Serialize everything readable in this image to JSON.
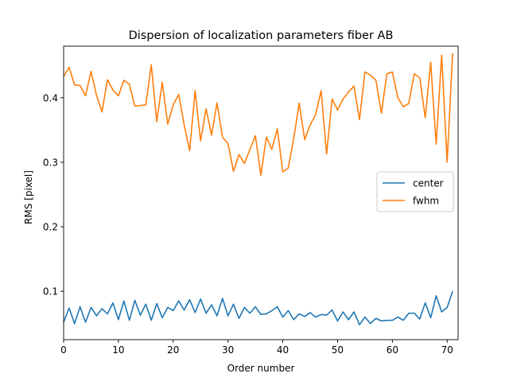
{
  "chart_data": {
    "type": "line",
    "title": "Dispersion of localization parameters fiber AB",
    "xlabel": "Order number",
    "ylabel": "RMS [pixel]",
    "xlim": [
      0,
      72
    ],
    "ylim": [
      0.025,
      0.48
    ],
    "x_ticks": [
      0,
      10,
      20,
      30,
      40,
      50,
      60,
      70
    ],
    "y_ticks": [
      0.1,
      0.2,
      0.3,
      0.4
    ],
    "y_tick_labels": [
      "0.1",
      "0.2",
      "0.3",
      "0.4"
    ],
    "grid": false,
    "legend_position": "center-right",
    "x": [
      0,
      1,
      2,
      3,
      4,
      5,
      6,
      7,
      8,
      9,
      10,
      11,
      12,
      13,
      14,
      15,
      16,
      17,
      18,
      19,
      20,
      21,
      22,
      23,
      24,
      25,
      26,
      27,
      28,
      29,
      30,
      31,
      32,
      33,
      34,
      35,
      36,
      37,
      38,
      39,
      40,
      41,
      42,
      43,
      44,
      45,
      46,
      47,
      48,
      49,
      50,
      51,
      52,
      53,
      54,
      55,
      56,
      57,
      58,
      59,
      60,
      61,
      62,
      63,
      64,
      65,
      66,
      67,
      68,
      69,
      70,
      71
    ],
    "series": [
      {
        "name": "center",
        "color": "#1f77b4",
        "values": [
          0.052,
          0.074,
          0.05,
          0.076,
          0.052,
          0.075,
          0.062,
          0.073,
          0.065,
          0.082,
          0.056,
          0.085,
          0.055,
          0.086,
          0.063,
          0.08,
          0.055,
          0.081,
          0.059,
          0.075,
          0.07,
          0.085,
          0.071,
          0.087,
          0.067,
          0.088,
          0.066,
          0.079,
          0.062,
          0.089,
          0.062,
          0.08,
          0.058,
          0.075,
          0.066,
          0.076,
          0.064,
          0.065,
          0.07,
          0.076,
          0.06,
          0.07,
          0.056,
          0.065,
          0.061,
          0.067,
          0.06,
          0.064,
          0.063,
          0.071,
          0.054,
          0.068,
          0.056,
          0.068,
          0.048,
          0.06,
          0.05,
          0.058,
          0.054,
          0.055,
          0.055,
          0.06,
          0.055,
          0.066,
          0.066,
          0.057,
          0.082,
          0.059,
          0.093,
          0.068,
          0.075,
          0.1
        ]
      },
      {
        "name": "fwhm",
        "color": "#ff7f0e",
        "values": [
          0.433,
          0.447,
          0.42,
          0.419,
          0.403,
          0.441,
          0.404,
          0.378,
          0.428,
          0.412,
          0.403,
          0.427,
          0.421,
          0.387,
          0.388,
          0.389,
          0.451,
          0.363,
          0.424,
          0.359,
          0.389,
          0.405,
          0.358,
          0.318,
          0.411,
          0.333,
          0.383,
          0.342,
          0.392,
          0.339,
          0.329,
          0.286,
          0.312,
          0.298,
          0.32,
          0.341,
          0.28,
          0.339,
          0.32,
          0.352,
          0.285,
          0.291,
          0.337,
          0.392,
          0.335,
          0.358,
          0.374,
          0.411,
          0.313,
          0.398,
          0.381,
          0.398,
          0.409,
          0.418,
          0.366,
          0.44,
          0.435,
          0.427,
          0.376,
          0.437,
          0.44,
          0.4,
          0.386,
          0.391,
          0.437,
          0.431,
          0.369,
          0.455,
          0.328,
          0.466,
          0.3,
          0.469
        ]
      }
    ]
  }
}
